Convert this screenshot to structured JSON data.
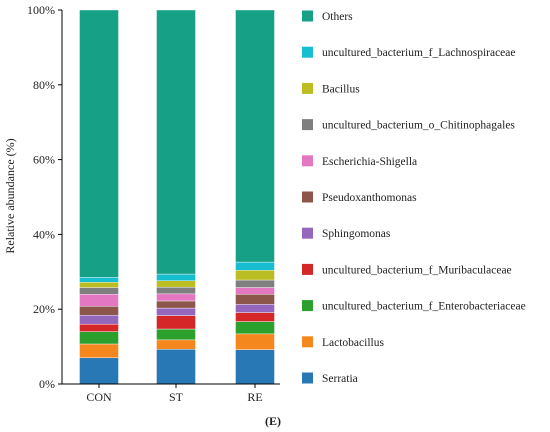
{
  "chart_data": {
    "type": "bar",
    "stacked": true,
    "categories": [
      "CON",
      "ST",
      "RE"
    ],
    "ylabel": "Relative abundance (%)",
    "ylim": [
      0,
      100
    ],
    "yticks": [
      "0%",
      "20%",
      "40%",
      "60%",
      "80%",
      "100%"
    ],
    "caption": "(E)",
    "legend_position": "right",
    "series": [
      {
        "name": "Serratia",
        "color": "#2878b5",
        "values": [
          7.0,
          9.3,
          9.2
        ]
      },
      {
        "name": "Lactobacillus",
        "color": "#f5871f",
        "values": [
          3.7,
          2.5,
          4.2
        ]
      },
      {
        "name": "uncultured_bacterium_f_Enterobacteriaceae",
        "color": "#2ca02c",
        "values": [
          3.3,
          2.9,
          3.3
        ]
      },
      {
        "name": "uncultured_bacterium_f_Muribaculaceae",
        "color": "#d62728",
        "values": [
          2.0,
          3.6,
          2.4
        ]
      },
      {
        "name": "Sphingomonas",
        "color": "#9467bd",
        "values": [
          2.4,
          2.0,
          2.2
        ]
      },
      {
        "name": "Pseudoxanthomonas",
        "color": "#8c564b",
        "values": [
          2.4,
          1.9,
          2.7
        ]
      },
      {
        "name": "Escherichia-Shigella",
        "color": "#e377c2",
        "values": [
          3.2,
          1.9,
          1.8
        ]
      },
      {
        "name": "uncultured_bacterium_o_Chitinophagales",
        "color": "#7f7f7f",
        "values": [
          1.8,
          1.8,
          2.0
        ]
      },
      {
        "name": "Bacillus",
        "color": "#bcbd22",
        "values": [
          1.4,
          1.7,
          2.6
        ]
      },
      {
        "name": "uncultured_bacterium_f_Lachnospiraceae",
        "color": "#17becf",
        "values": [
          1.3,
          1.8,
          2.2
        ]
      },
      {
        "name": "Others",
        "color": "#16a085",
        "values": [
          71.5,
          70.6,
          67.4
        ]
      }
    ]
  }
}
